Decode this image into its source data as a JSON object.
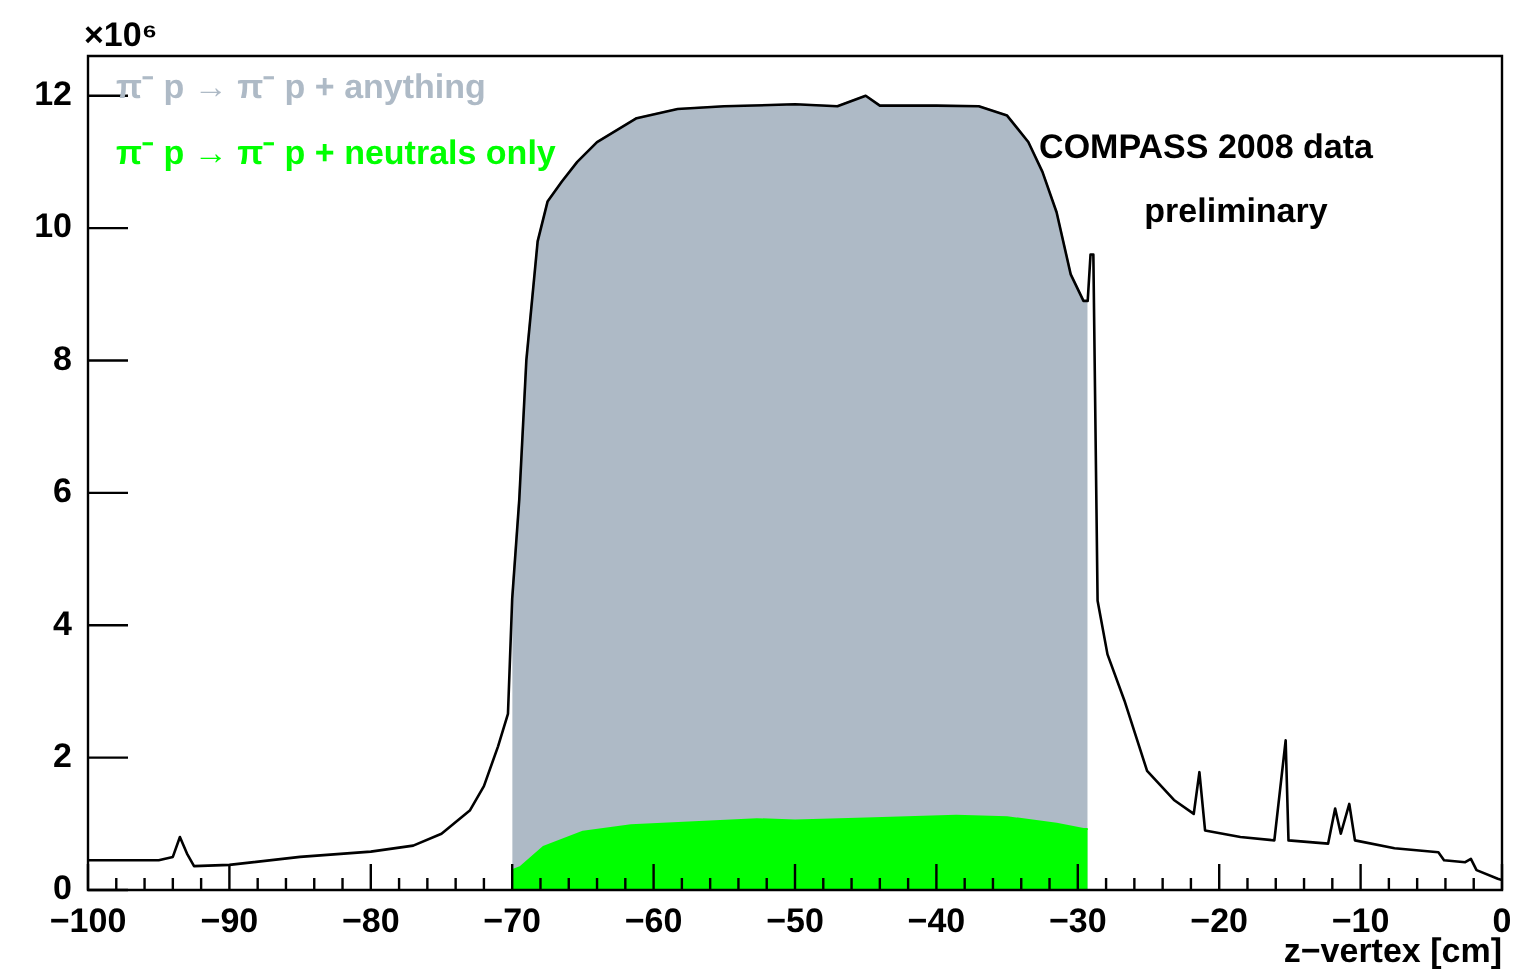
{
  "chart_data": {
    "type": "line",
    "xlabel": "z−vertex [cm]",
    "ylabel": "×10⁶",
    "annotations": [
      "COMPASS 2008 data",
      "preliminary"
    ],
    "series": [
      {
        "color": "#000000",
        "x": [
          -100,
          -97,
          -95,
          -94,
          -93.5,
          -93,
          -92.5,
          -90,
          -85,
          -80,
          -77,
          -75,
          -73,
          -72,
          -71,
          -70.3,
          -70,
          -69.5,
          -69,
          -68.2,
          -67.5,
          -66.5,
          -65.4,
          -64,
          -61.2,
          -58.3,
          -55,
          -50,
          -47,
          -45,
          -44,
          -40,
          -37,
          -35,
          -33.5,
          -32.5,
          -31.5,
          -30.5,
          -29.6,
          -29.3,
          -29.1,
          -28.9,
          -28.6,
          -27.9,
          -26.7,
          -25.1,
          -23.2,
          -21.8,
          -21.4,
          -21.0,
          -18.5,
          -16.1,
          -15.3,
          -15.1,
          -12.3,
          -11.8,
          -11.4,
          -10.8,
          -10.4,
          -7.6,
          -4.5,
          -4.1,
          -2.6,
          -2.2,
          -1.8,
          -0.3,
          0
        ],
        "values": [
          0.45,
          0.45,
          0.45,
          0.5,
          0.8,
          0.55,
          0.36,
          0.38,
          0.5,
          0.58,
          0.67,
          0.85,
          1.2,
          1.57,
          2.17,
          2.66,
          4.4,
          5.9,
          8.0,
          9.8,
          10.4,
          10.7,
          11.0,
          11.3,
          11.66,
          11.8,
          11.84,
          11.87,
          11.84,
          12.0,
          11.85,
          11.85,
          11.84,
          11.7,
          11.3,
          10.85,
          10.24,
          9.3,
          8.9,
          8.9,
          9.6,
          9.6,
          4.37,
          3.56,
          2.86,
          1.8,
          1.36,
          1.15,
          1.78,
          0.9,
          0.8,
          0.75,
          2.26,
          0.75,
          0.7,
          1.23,
          0.85,
          1.3,
          0.75,
          0.63,
          0.57,
          0.45,
          0.42,
          0.47,
          0.3,
          0.17,
          0.15
        ]
      },
      {
        "type": "area",
        "name": "π⁻ p → π⁻ p + anything",
        "color": "#aebac6",
        "x": [
          -70,
          -69.5,
          -69,
          -68.2,
          -67.5,
          -66.5,
          -65.4,
          -64,
          -61.2,
          -58.3,
          -55,
          -50,
          -47,
          -45,
          -44,
          -40,
          -37,
          -35,
          -33.5,
          -32.5,
          -31.5,
          -30.5,
          -29.6,
          -29.3
        ],
        "values": [
          4.4,
          5.9,
          8.0,
          9.8,
          10.4,
          10.7,
          11.0,
          11.3,
          11.66,
          11.8,
          11.84,
          11.87,
          11.84,
          12.0,
          11.85,
          11.85,
          11.84,
          11.7,
          11.3,
          10.85,
          10.24,
          9.3,
          8.9,
          8.9
        ]
      },
      {
        "type": "area",
        "name": "π⁻ p → π⁻ p + neutrals only",
        "color": "#00ff00",
        "x": [
          -70,
          -69.4,
          -67.8,
          -65,
          -61.6,
          -52.7,
          -50,
          -45,
          -38.6,
          -35,
          -31.5,
          -29.6,
          -29.3
        ],
        "values": [
          0.3,
          0.35,
          0.65,
          0.88,
          0.98,
          1.07,
          1.05,
          1.08,
          1.12,
          1.1,
          1.0,
          0.92,
          0.92
        ]
      }
    ],
    "xlim": [
      -100,
      0
    ],
    "xticks": [
      -100,
      -90,
      -80,
      -70,
      -60,
      -50,
      -40,
      -30,
      -20,
      -10,
      0
    ],
    "ylim": [
      0,
      12.6
    ],
    "yticks": [
      0,
      2,
      4,
      6,
      8,
      10,
      12
    ],
    "grid": false,
    "legend": "top left"
  }
}
